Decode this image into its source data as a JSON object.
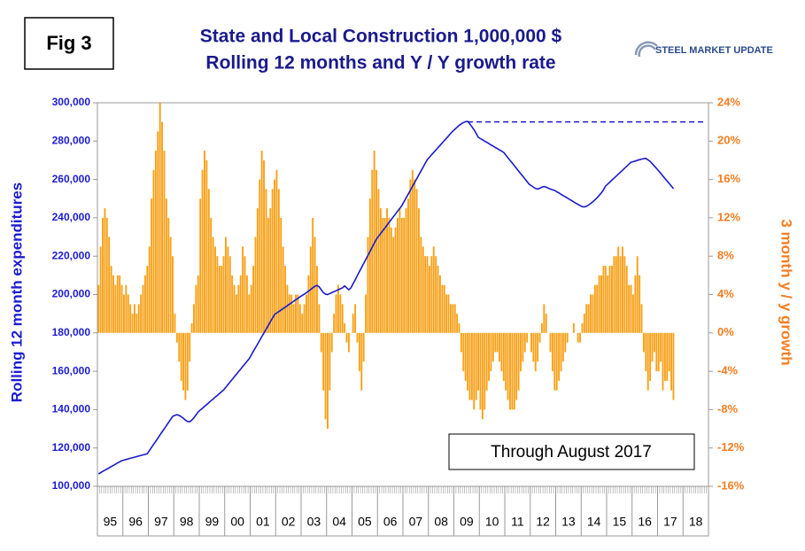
{
  "chart_data": {
    "type": "combo",
    "title": "State and Local Construction 1,000,000 $",
    "subtitle": "Rolling 12 months and Y / Y growth rate",
    "figure_label": "Fig 3",
    "logo": "STEEL MARKET UPDATE",
    "annotation": "Through August 2017",
    "y_label": "Rolling 12 month expenditures",
    "y2_label": "3 month y / y growth",
    "ylim": [
      100000,
      300000
    ],
    "yticks": [
      {
        "value": 100000,
        "label": "100,000"
      },
      {
        "value": 120000,
        "label": "120,000"
      },
      {
        "value": 140000,
        "label": "140,000"
      },
      {
        "value": 160000,
        "label": "160,000"
      },
      {
        "value": 180000,
        "label": "180,000"
      },
      {
        "value": 200000,
        "label": "200,000"
      },
      {
        "value": 220000,
        "label": "220,000"
      },
      {
        "value": 240000,
        "label": "240,000"
      },
      {
        "value": 260000,
        "label": "260,000"
      },
      {
        "value": 280000,
        "label": "280,000"
      },
      {
        "value": 300000,
        "label": "300,000"
      }
    ],
    "y2lim": [
      -16,
      24
    ],
    "y2ticks": [
      {
        "value": -16,
        "label": "-16%"
      },
      {
        "value": -12,
        "label": "-12%"
      },
      {
        "value": -8,
        "label": "-8%"
      },
      {
        "value": -4,
        "label": "-4%"
      },
      {
        "value": 0,
        "label": "0%"
      },
      {
        "value": 4,
        "label": "4%"
      },
      {
        "value": 8,
        "label": "8%"
      },
      {
        "value": 12,
        "label": "12%"
      },
      {
        "value": 16,
        "label": "16%"
      },
      {
        "value": 20,
        "label": "20%"
      },
      {
        "value": 24,
        "label": "24%"
      }
    ],
    "peak_level": 290000,
    "categories": [
      "95",
      null,
      null,
      null,
      null,
      null,
      null,
      null,
      null,
      null,
      null,
      null,
      "96",
      null,
      null,
      null,
      null,
      null,
      null,
      null,
      null,
      null,
      null,
      null,
      "97",
      null,
      null,
      null,
      null,
      null,
      null,
      null,
      null,
      null,
      null,
      null,
      "98",
      null,
      null,
      null,
      null,
      null,
      null,
      null,
      null,
      null,
      null,
      null,
      "99",
      null,
      null,
      null,
      null,
      null,
      null,
      null,
      null,
      null,
      null,
      null,
      "00",
      null,
      null,
      null,
      null,
      null,
      null,
      null,
      null,
      null,
      null,
      null,
      "01",
      null,
      null,
      null,
      null,
      null,
      null,
      null,
      null,
      null,
      null,
      null,
      "02",
      null,
      null,
      null,
      null,
      null,
      null,
      null,
      null,
      null,
      null,
      null,
      "03",
      null,
      null,
      null,
      null,
      null,
      null,
      null,
      null,
      null,
      null,
      null,
      "04",
      null,
      null,
      null,
      null,
      null,
      null,
      null,
      null,
      null,
      null,
      null,
      "05",
      null,
      null,
      null,
      null,
      null,
      null,
      null,
      null,
      null,
      null,
      null,
      "06",
      null,
      null,
      null,
      null,
      null,
      null,
      null,
      null,
      null,
      null,
      null,
      "07",
      null,
      null,
      null,
      null,
      null,
      null,
      null,
      null,
      null,
      null,
      null,
      "08",
      null,
      null,
      null,
      null,
      null,
      null,
      null,
      null,
      null,
      null,
      null,
      "09",
      null,
      null,
      null,
      null,
      null,
      null,
      null,
      null,
      null,
      null,
      null,
      "10",
      null,
      null,
      null,
      null,
      null,
      null,
      null,
      null,
      null,
      null,
      null,
      "11",
      null,
      null,
      null,
      null,
      null,
      null,
      null,
      null,
      null,
      null,
      null,
      "12",
      null,
      null,
      null,
      null,
      null,
      null,
      null,
      null,
      null,
      null,
      null,
      "13",
      null,
      null,
      null,
      null,
      null,
      null,
      null,
      null,
      null,
      null,
      null,
      "14",
      null,
      null,
      null,
      null,
      null,
      null,
      null,
      null,
      null,
      null,
      null,
      "15",
      null,
      null,
      null,
      null,
      null,
      null,
      null,
      null,
      null,
      null,
      null,
      "16",
      null,
      null,
      null,
      null,
      null,
      null,
      null,
      null,
      null,
      null,
      null,
      "17",
      null,
      null,
      null,
      null,
      null,
      null,
      null,
      null,
      null,
      null,
      null,
      "18",
      null,
      null,
      null,
      null,
      null,
      null,
      null,
      null,
      null,
      null,
      null
    ],
    "series": [
      {
        "type": "bar",
        "axis": "y2",
        "color": "#f7a21b",
        "values": [
          5,
          9,
          12,
          13,
          12,
          10,
          7,
          6,
          5,
          6,
          6,
          5,
          4,
          5,
          4,
          3,
          2,
          3,
          2,
          3,
          4,
          5,
          6,
          7,
          9,
          14,
          17,
          19,
          21,
          24,
          22,
          19,
          14,
          12,
          10,
          8,
          2,
          -1,
          -3,
          -5,
          -6,
          -7,
          -6,
          -3,
          1,
          3,
          5,
          6,
          14,
          17,
          19,
          18,
          15,
          12,
          10,
          9,
          8,
          7,
          7,
          8,
          10,
          9,
          8,
          6,
          5,
          4,
          5,
          6,
          9,
          8,
          6,
          4,
          5,
          7,
          10,
          13,
          16,
          19,
          18,
          15,
          12,
          13,
          15,
          16,
          17,
          15,
          12,
          9,
          7,
          5,
          4,
          4,
          3,
          4,
          4,
          3,
          2,
          3,
          4,
          6,
          9,
          12,
          10,
          7,
          3,
          -2,
          -6,
          -9,
          -10,
          -6,
          -2,
          2,
          4,
          5,
          4,
          3,
          1,
          -1,
          -2,
          0,
          2,
          3,
          -1,
          -4,
          -6,
          -3,
          4,
          10,
          14,
          17,
          19,
          17,
          15,
          13,
          12,
          12,
          13,
          12,
          11,
          10,
          11,
          12,
          13,
          12,
          12,
          13,
          14,
          16,
          17,
          16,
          15,
          13,
          10,
          9,
          8,
          8,
          7,
          8,
          9,
          8,
          7,
          6,
          5,
          5,
          4,
          4,
          3,
          3,
          3,
          2,
          1,
          -2,
          -4,
          -5,
          -6,
          -7,
          -7,
          -8,
          -7,
          -6,
          -8,
          -9,
          -8,
          -6,
          -5,
          -4,
          -3,
          -2,
          -2,
          -3,
          -4,
          -5,
          -6,
          -7,
          -8,
          -8,
          -8,
          -7,
          -6,
          -4,
          -3,
          -2,
          -1,
          0,
          -2,
          -3,
          -4,
          -3,
          -1,
          1,
          3,
          2,
          0,
          -2,
          -4,
          -6,
          -6,
          -5,
          -4,
          -3,
          -2,
          -1,
          0,
          0,
          1,
          0,
          -1,
          -1,
          1,
          2,
          3,
          3,
          4,
          4,
          5,
          5,
          6,
          6,
          7,
          7,
          6,
          7,
          7,
          8,
          8,
          9,
          8,
          9,
          8,
          7,
          5,
          5,
          4,
          6,
          8,
          6,
          3,
          -2,
          -4,
          -6,
          -5,
          -3,
          -2,
          -4,
          -4,
          -3,
          -6,
          -5,
          -5,
          -4,
          -6,
          -7,
          null,
          null,
          null,
          null,
          null,
          null,
          null,
          null,
          null,
          null,
          null,
          null,
          null,
          null,
          null,
          null
        ]
      },
      {
        "type": "line",
        "axis": "y",
        "color": "#1a1acc",
        "values": [
          106500,
          107100,
          107800,
          108400,
          109000,
          109600,
          110300,
          110900,
          111500,
          112200,
          112800,
          113400,
          113700,
          114000,
          114300,
          114600,
          114900,
          115200,
          115500,
          115800,
          116100,
          116400,
          116700,
          117000,
          118600,
          120300,
          121900,
          123500,
          125100,
          126800,
          128400,
          130000,
          131600,
          133300,
          134900,
          136500,
          137000,
          137300,
          137000,
          136300,
          135500,
          134500,
          133800,
          133700,
          134500,
          135800,
          137300,
          138800,
          139800,
          140700,
          141700,
          142600,
          143600,
          144600,
          145500,
          146500,
          147400,
          148400,
          149300,
          150300,
          151600,
          153000,
          154400,
          155700,
          157100,
          158400,
          159800,
          161100,
          162500,
          163800,
          165200,
          166500,
          168400,
          170400,
          172300,
          174200,
          176100,
          178100,
          180000,
          181900,
          183800,
          185800,
          187700,
          189600,
          190400,
          191100,
          191900,
          192700,
          193400,
          194200,
          195000,
          195700,
          196500,
          197300,
          198000,
          198800,
          199500,
          200200,
          201000,
          201800,
          202600,
          203500,
          204300,
          204800,
          204000,
          202500,
          201000,
          200200,
          200000,
          200500,
          201000,
          201500,
          202000,
          202500,
          203000,
          203500,
          204500,
          203500,
          202500,
          203500,
          205600,
          207700,
          209900,
          212000,
          214100,
          216200,
          218300,
          220400,
          222500,
          224700,
          226800,
          228900,
          230400,
          231800,
          233300,
          234700,
          236200,
          237700,
          239100,
          240600,
          242000,
          243500,
          244900,
          246400,
          248400,
          250400,
          252400,
          254400,
          256400,
          258400,
          260400,
          262400,
          264400,
          266400,
          268400,
          270400,
          271600,
          272900,
          274100,
          275300,
          276600,
          277800,
          279000,
          280300,
          281500,
          282700,
          284000,
          285200,
          286200,
          287200,
          288200,
          289000,
          289700,
          290100,
          290300,
          289000,
          287500,
          285900,
          284000,
          282000,
          281300,
          280700,
          280000,
          279400,
          278700,
          278000,
          277400,
          276700,
          276100,
          275400,
          274800,
          274100,
          272700,
          271300,
          269900,
          268600,
          267200,
          265800,
          264400,
          263000,
          261700,
          260300,
          258900,
          257500,
          256800,
          256000,
          255300,
          255000,
          255400,
          256000,
          256300,
          256000,
          255500,
          255000,
          254600,
          254300,
          253600,
          253000,
          252300,
          251600,
          251000,
          250300,
          249600,
          249000,
          248300,
          247600,
          247000,
          246400,
          245800,
          245700,
          246000,
          246700,
          247500,
          248400,
          249400,
          250500,
          251700,
          253000,
          254600,
          256600,
          257600,
          258600,
          259700,
          260700,
          261700,
          262800,
          263800,
          264800,
          265900,
          266900,
          268000,
          269000,
          269300,
          269600,
          270000,
          270300,
          270600,
          270900,
          271000,
          270200,
          269400,
          268200,
          267000,
          265800,
          264500,
          263200,
          261800,
          260500,
          259200,
          257900,
          256600,
          255200,
          null,
          null,
          null,
          null,
          null,
          null,
          null,
          null,
          null,
          null,
          null,
          null,
          null,
          null,
          null,
          null
        ]
      }
    ]
  }
}
